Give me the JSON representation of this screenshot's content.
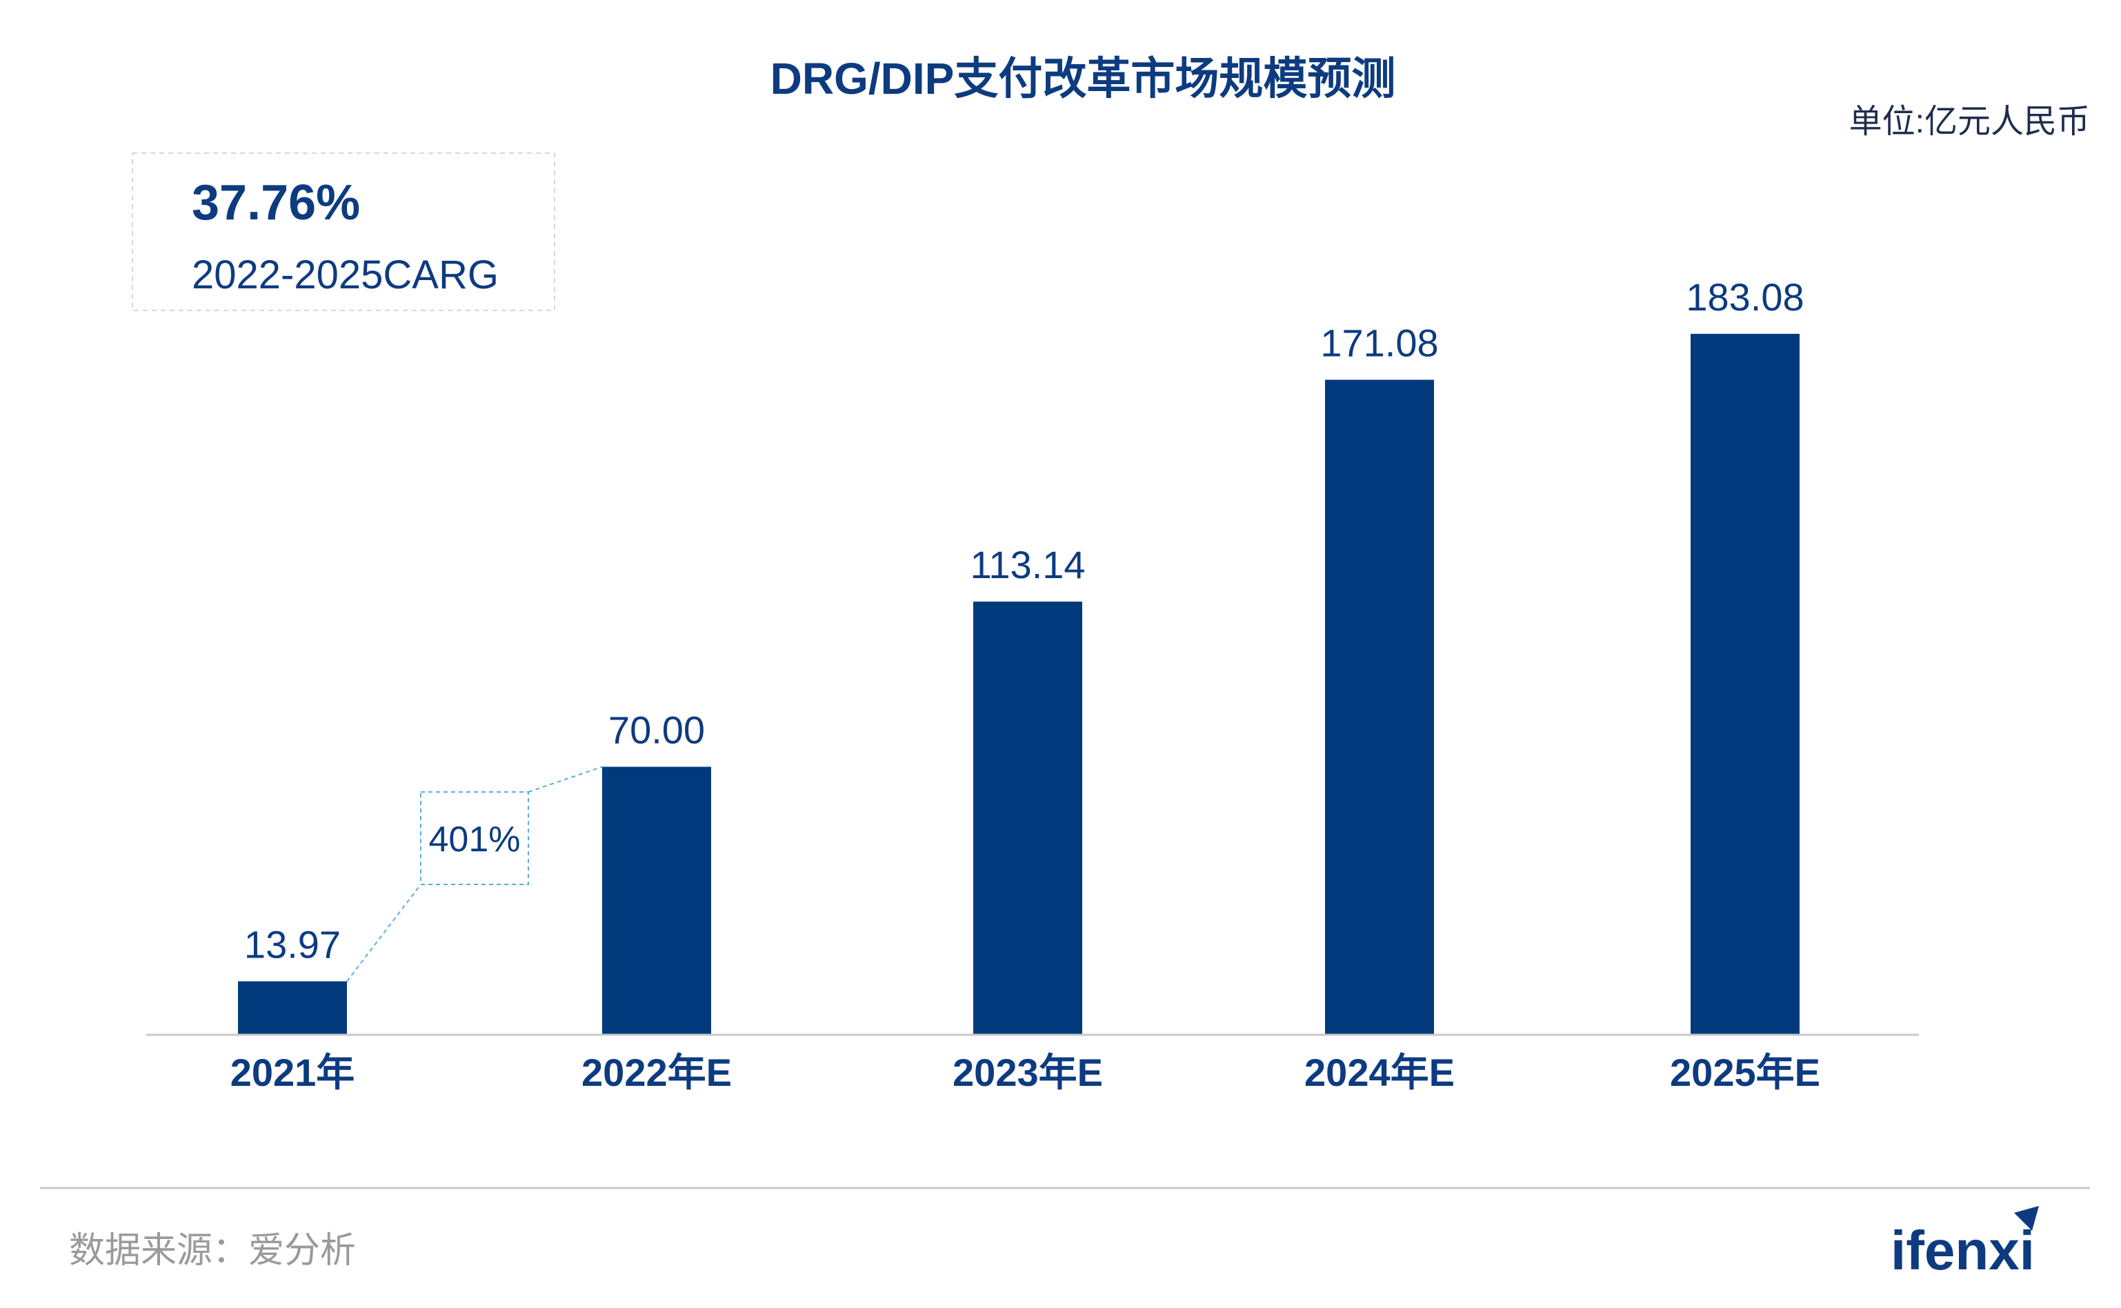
{
  "chart_data": {
    "type": "bar",
    "title": "DRG/DIP支付改革市场规模预测",
    "unit_label": "单位:亿元人民币",
    "categories": [
      "2021年",
      "2022年E",
      "2023年E",
      "2024年E",
      "2025年E"
    ],
    "values": [
      13.97,
      70.0,
      113.14,
      171.08,
      183.08
    ],
    "value_labels": [
      "13.97",
      "70.00",
      "113.14",
      "171.08",
      "183.08"
    ],
    "ylim": [
      0,
      200
    ],
    "grid": false,
    "legend": "none",
    "bar_color": "#013a7d",
    "annotations": {
      "cagr_value": "37.76%",
      "cagr_label": "2022-2025CARG",
      "growth_label": "401%"
    }
  },
  "footer": {
    "source": "数据来源：爱分析",
    "logo": "ifenxi"
  },
  "colors": {
    "primary": "#0d3b80",
    "bar": "#013a7d",
    "dashed": "#5aaedc",
    "box_border": "#d6d6d6",
    "axis": "#c8c8c8",
    "source_text": "#9a9a9a"
  }
}
